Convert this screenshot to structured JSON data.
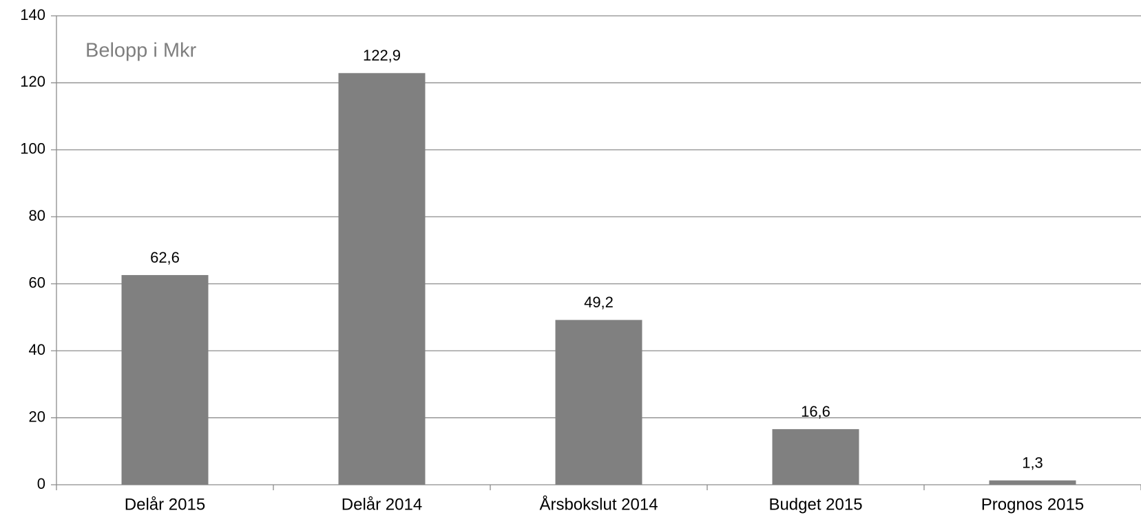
{
  "chart_data": {
    "type": "bar",
    "annotation": "Belopp i Mkr",
    "categories": [
      "Delår 2015",
      "Delår 2014",
      "Årsbokslut 2014",
      "Budget 2015",
      "Prognos 2015"
    ],
    "values": [
      62.6,
      122.9,
      49.2,
      16.6,
      1.3
    ],
    "value_labels": [
      "62,6",
      "122,9",
      "49,2",
      "16,6",
      "1,3"
    ],
    "color": "#808080",
    "ylim": [
      0,
      140
    ],
    "yticks": [
      0,
      20,
      40,
      60,
      80,
      100,
      120,
      140
    ],
    "grid": true
  }
}
